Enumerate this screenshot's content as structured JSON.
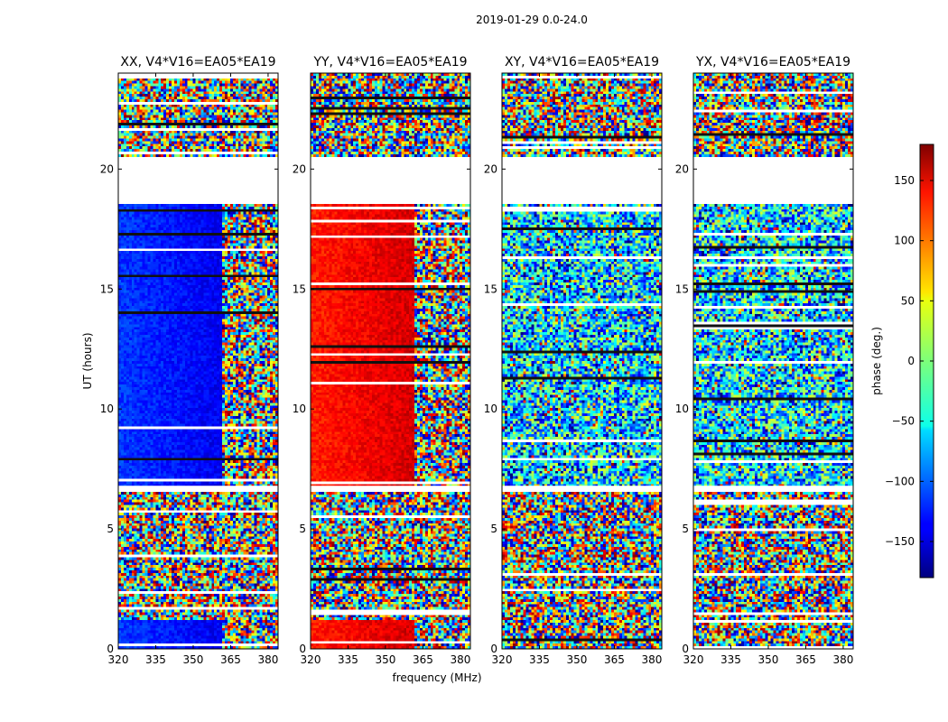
{
  "figure": {
    "suptitle": "2019-01-29 0.0-24.0",
    "xlabel": "frequency (MHz)",
    "ylabel": "UT (hours)",
    "colorbar_label": "phase (deg.)"
  },
  "chart_data": {
    "type": "heatmap",
    "title": "2019-01-29 0.0-24.0",
    "xlabel": "frequency (MHz)",
    "ylabel": "UT (hours)",
    "xlim": [
      320,
      384
    ],
    "ylim": [
      0,
      24
    ],
    "x_ticks": [
      320,
      335,
      350,
      365,
      380
    ],
    "y_ticks": [
      0,
      5,
      10,
      15,
      20
    ],
    "gap_bands_hours": [
      [
        20.5,
        18.6
      ],
      [
        6.6,
        6.8
      ]
    ],
    "colorbar": {
      "label": "phase (deg.)",
      "range": [
        -180,
        180
      ],
      "ticks": [
        150,
        100,
        50,
        0,
        -50,
        -100,
        -150
      ],
      "tick_labels": [
        "150",
        "100",
        "50",
        "0",
        "−50",
        "−100",
        "−150"
      ],
      "colormap": "jet"
    },
    "panels": [
      {
        "title": "XX, V4*V16=EA05*EA19",
        "coherent_phase_deg": -115,
        "coherent_below_mhz": 361
      },
      {
        "title": "YY, V4*V16=EA05*EA19",
        "coherent_phase_deg": 125,
        "coherent_below_mhz": 361
      },
      {
        "title": "XY, V4*V16=EA05*EA19",
        "coherent_phase_deg": null,
        "coherent_below_mhz": null
      },
      {
        "title": "YX, V4*V16=EA05*EA19",
        "coherent_phase_deg": null,
        "coherent_below_mhz": null
      }
    ]
  }
}
